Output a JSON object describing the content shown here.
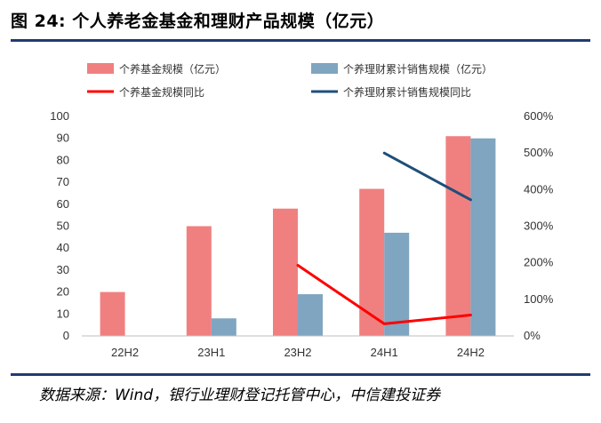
{
  "header": {
    "title": "图 24: 个人养老金基金和理财产品规模（亿元）"
  },
  "footer": {
    "source": "数据来源：Wind，银行业理财登记托管中心，中信建投证券"
  },
  "chart_data": {
    "type": "bar",
    "categories": [
      "22H2",
      "23H1",
      "23H2",
      "24H1",
      "24H2"
    ],
    "series": [
      {
        "name": "个养基金规模（亿元）",
        "kind": "bar",
        "axis": "left",
        "color": "#f08080",
        "values": [
          20,
          50,
          58,
          67,
          91
        ]
      },
      {
        "name": "个养理财累计销售规模（亿元）",
        "kind": "bar",
        "axis": "left",
        "color": "#7fa5c0",
        "values": [
          null,
          8,
          19,
          47,
          90
        ]
      },
      {
        "name": "个养基金规模同比",
        "kind": "line",
        "axis": "right",
        "color": "#ff0000",
        "values": [
          null,
          null,
          193,
          33,
          57
        ]
      },
      {
        "name": "个养理财累计销售规模同比",
        "kind": "line",
        "axis": "right",
        "color": "#1f4e79",
        "values": [
          null,
          null,
          null,
          500,
          372
        ]
      }
    ],
    "y_left": {
      "min": 0,
      "max": 100,
      "step": 10,
      "ticks": [
        "0",
        "10",
        "20",
        "30",
        "40",
        "50",
        "60",
        "70",
        "80",
        "90",
        "100"
      ]
    },
    "y_right": {
      "min": 0,
      "max": 600,
      "step": 100,
      "ticks": [
        "0%",
        "100%",
        "200%",
        "300%",
        "400%",
        "500%",
        "600%"
      ]
    },
    "grid": false,
    "legend": "top"
  }
}
